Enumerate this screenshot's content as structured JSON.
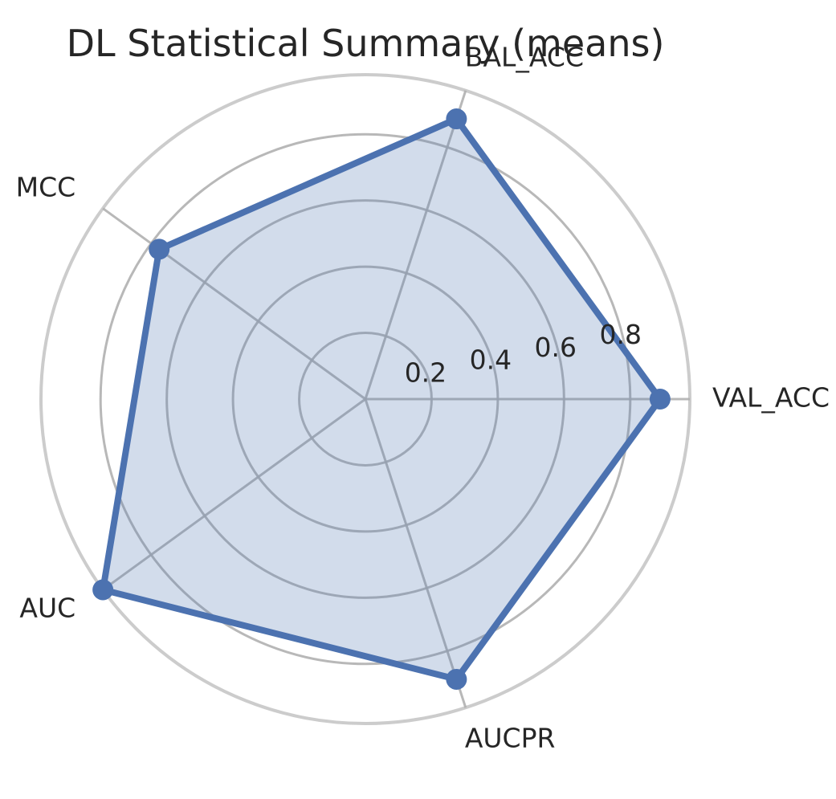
{
  "chart_data": {
    "type": "radar",
    "title": "DL Statistical Summary (means)",
    "categories": [
      "VAL_ACC",
      "BAL_ACC",
      "MCC",
      "AUC",
      "AUCPR"
    ],
    "series": [
      {
        "values": [
          0.89,
          0.89,
          0.77,
          0.98,
          0.89
        ]
      }
    ],
    "r_ticks": [
      "0.2",
      "0.4",
      "0.6",
      "0.8"
    ],
    "r_tick_values": [
      0.2,
      0.4,
      0.6,
      0.8
    ],
    "rlim": [
      0,
      0.98
    ],
    "grid": true,
    "colors": {
      "series": "#4c72b0",
      "fill": "#4c72b0",
      "grid": "#b0b0b0",
      "frame": "#cccccc",
      "text": "#262626"
    }
  }
}
